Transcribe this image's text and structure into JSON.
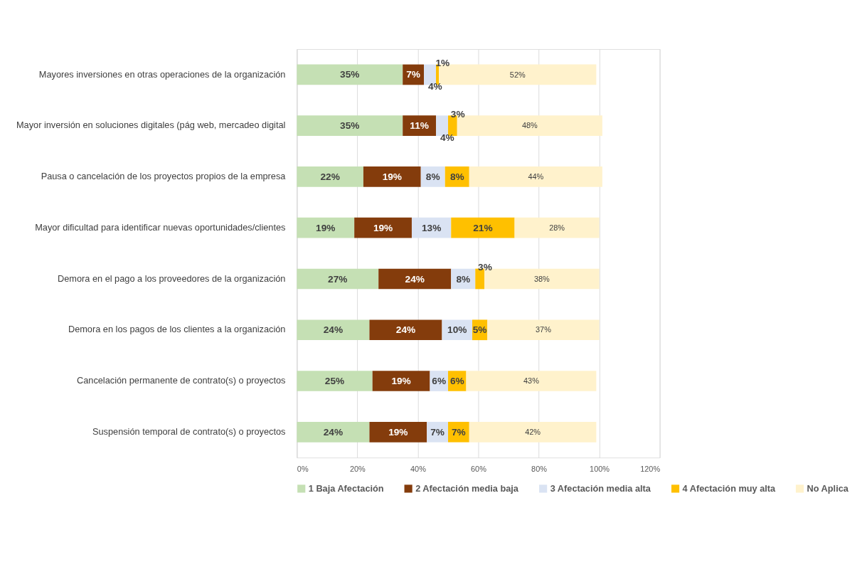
{
  "chart_data": {
    "type": "bar",
    "orientation": "horizontal",
    "stacked": true,
    "categories": [
      "Mayores inversiones en otras operaciones de la organización",
      "Mayor inversión en soluciones digitales (pág  web, mercadeo digital",
      "Pausa o cancelación de los proyectos propios de la empresa",
      "Mayor dificultad para identificar nuevas oportunidades/clientes",
      "Demora en el pago a los proveedores de la organización",
      "Demora en los pagos de los clientes a la organización",
      "Cancelación permanente de contrato(s) o proyectos",
      "Suspensión temporal de contrato(s) o proyectos"
    ],
    "series": [
      {
        "name": "1 Baja Afectación",
        "color": "#c5e0b4",
        "values": [
          35,
          35,
          22,
          19,
          27,
          24,
          25,
          24
        ],
        "value_labels": [
          "35%",
          "35%",
          "22%",
          "19%",
          "27%",
          "24%",
          "25%",
          "24%"
        ]
      },
      {
        "name": "2 Afectación media baja",
        "color": "#843c0c",
        "values": [
          7,
          11,
          19,
          19,
          24,
          24,
          19,
          19
        ],
        "value_labels": [
          "7%",
          "11%",
          "19%",
          "19%",
          "24%",
          "24%",
          "19%",
          "19%"
        ]
      },
      {
        "name": "3 Afectación media alta",
        "color": "#dae3f3",
        "values": [
          4,
          4,
          8,
          13,
          8,
          10,
          6,
          7
        ],
        "value_labels": [
          "4%",
          "4%",
          "8%",
          "13%",
          "8%",
          "10%",
          "6%",
          "7%"
        ]
      },
      {
        "name": "4 Afectación muy alta",
        "color": "#ffc000",
        "values": [
          1,
          3,
          8,
          21,
          3,
          5,
          6,
          7
        ],
        "value_labels": [
          "1%",
          "3%",
          "8%",
          "21%",
          "3%",
          "5%",
          "6%",
          "7%"
        ]
      },
      {
        "name": "No Aplica",
        "color": "#fff2cc",
        "values": [
          52,
          48,
          44,
          28,
          38,
          37,
          43,
          42
        ],
        "value_labels": [
          "52%",
          "48%",
          "44%",
          "28%",
          "38%",
          "37%",
          "43%",
          "42%"
        ]
      }
    ],
    "xlim": [
      0,
      120
    ],
    "xticks": [
      {
        "value": 0,
        "label": "0%"
      },
      {
        "value": 20,
        "label": "20%"
      },
      {
        "value": 40,
        "label": "40%"
      },
      {
        "value": 60,
        "label": "60%"
      },
      {
        "value": 80,
        "label": "80%"
      },
      {
        "value": 100,
        "label": "100%"
      },
      {
        "value": 120,
        "label": "120%"
      }
    ],
    "grid": "x",
    "legend": "bottom"
  }
}
